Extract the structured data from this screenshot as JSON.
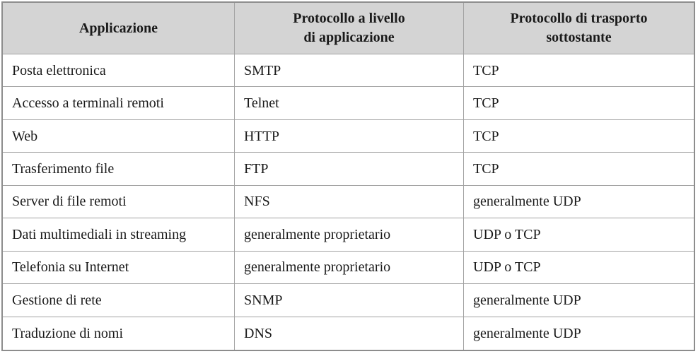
{
  "table": {
    "colors": {
      "header_background": "#d4d4d4",
      "grid_line": "#a2a2a2",
      "outer_border": "#8d8d8d",
      "text": "#1a1a1a",
      "body_background": "#ffffff"
    },
    "headers": [
      {
        "label": "Applicazione"
      },
      {
        "label": "Protocollo a livello\ndi applicazione"
      },
      {
        "label": "Protocollo di trasporto\nsottostante"
      }
    ],
    "rows": [
      [
        "Posta elettronica",
        "SMTP",
        "TCP"
      ],
      [
        "Accesso a terminali remoti",
        "Telnet",
        "TCP"
      ],
      [
        "Web",
        "HTTP",
        "TCP"
      ],
      [
        "Trasferimento file",
        "FTP",
        "TCP"
      ],
      [
        "Server di file remoti",
        "NFS",
        "generalmente UDP"
      ],
      [
        "Dati multimediali in streaming",
        "generalmente proprietario",
        "UDP o TCP"
      ],
      [
        "Telefonia su Internet",
        "generalmente proprietario",
        "UDP o TCP"
      ],
      [
        "Gestione di rete",
        "SNMP",
        "generalmente UDP"
      ],
      [
        "Traduzione di nomi",
        "DNS",
        "generalmente UDP"
      ]
    ]
  }
}
